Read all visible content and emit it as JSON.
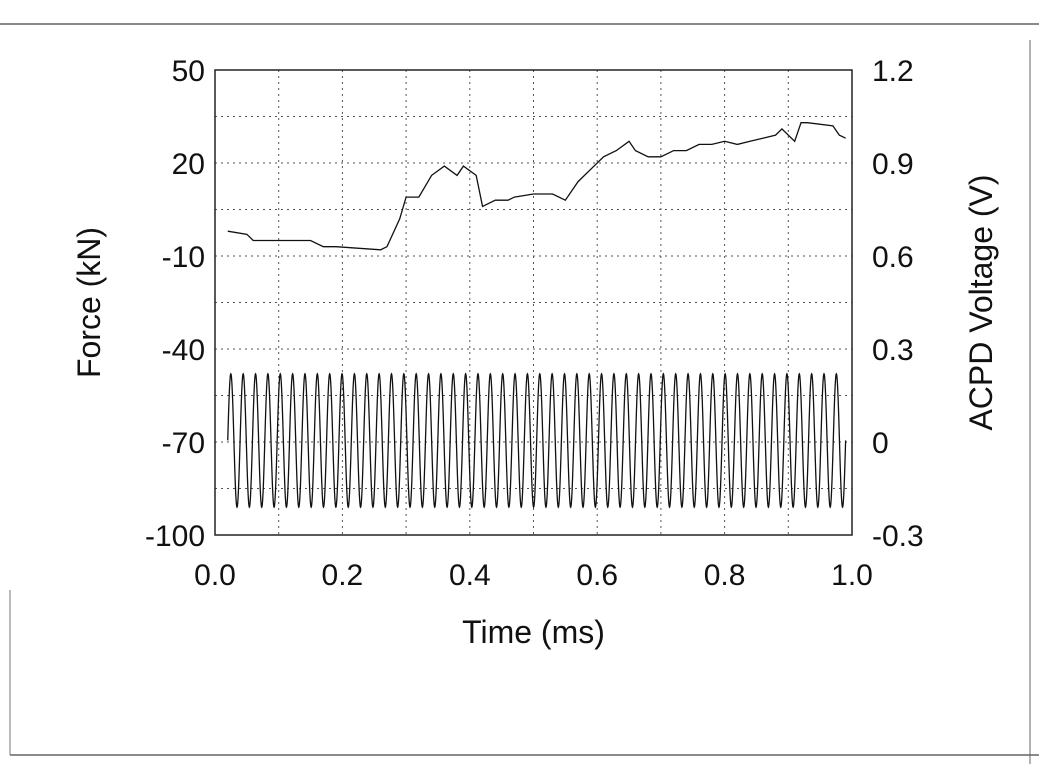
{
  "chart_data": {
    "type": "line",
    "xlabel": "Time (ms)",
    "ylabel_left": "Force (kN)",
    "ylabel_right": "ACPD Voltage (V)",
    "xlim": [
      0.0,
      1.0
    ],
    "ylim_left": [
      -100,
      50
    ],
    "ylim_right": [
      -0.3,
      1.2
    ],
    "x_ticks": [
      "0.0",
      "0.2",
      "0.4",
      "0.6",
      "0.8",
      "1.0"
    ],
    "y_ticks_left": [
      "50",
      "20",
      "-10",
      "-40",
      "-70",
      "-100"
    ],
    "y_ticks_right": [
      "1.2",
      "0.9",
      "0.6",
      "0.3",
      "0",
      "-0.3"
    ],
    "grid": true,
    "series": [
      {
        "axis": "left",
        "style": "sinusoid",
        "x_start": 0.02,
        "x_end": 0.99,
        "cycles": 50,
        "peak": -48,
        "trough": -91,
        "color": "#111111"
      },
      {
        "axis": "right",
        "style": "line",
        "color": "#111111",
        "x": [
          0.02,
          0.05,
          0.06,
          0.15,
          0.17,
          0.19,
          0.26,
          0.27,
          0.29,
          0.3,
          0.32,
          0.34,
          0.36,
          0.38,
          0.39,
          0.41,
          0.42,
          0.44,
          0.46,
          0.47,
          0.5,
          0.53,
          0.55,
          0.57,
          0.59,
          0.61,
          0.63,
          0.65,
          0.66,
          0.68,
          0.7,
          0.72,
          0.74,
          0.76,
          0.78,
          0.8,
          0.82,
          0.84,
          0.86,
          0.88,
          0.89,
          0.91,
          0.92,
          0.93,
          0.97,
          0.98,
          0.99
        ],
        "y": [
          0.68,
          0.67,
          0.65,
          0.65,
          0.63,
          0.63,
          0.62,
          0.63,
          0.72,
          0.79,
          0.79,
          0.86,
          0.89,
          0.86,
          0.89,
          0.86,
          0.76,
          0.78,
          0.78,
          0.79,
          0.8,
          0.8,
          0.78,
          0.84,
          0.88,
          0.92,
          0.94,
          0.97,
          0.94,
          0.92,
          0.92,
          0.94,
          0.94,
          0.96,
          0.96,
          0.97,
          0.96,
          0.97,
          0.98,
          0.99,
          1.01,
          0.97,
          1.03,
          1.03,
          1.02,
          0.99,
          0.98
        ]
      }
    ]
  }
}
